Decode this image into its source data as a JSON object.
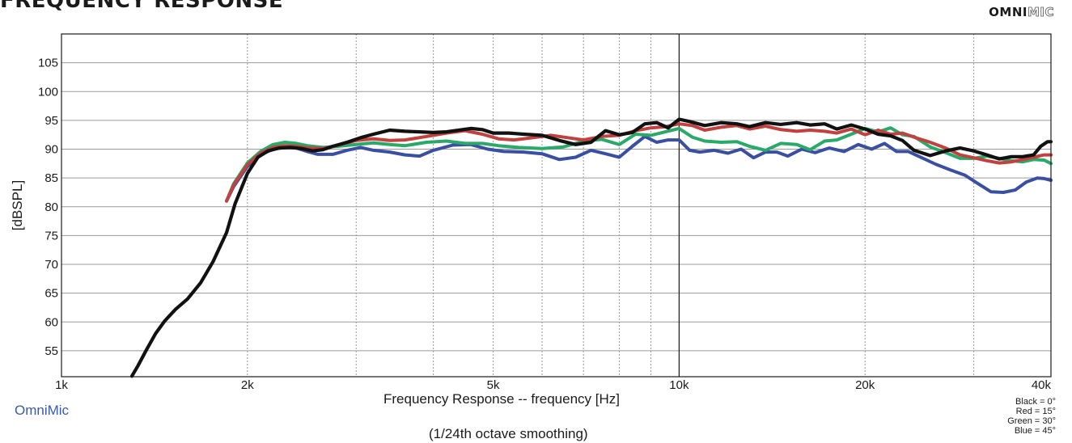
{
  "header": {
    "title": "FREQUENCY RESPONSE",
    "brand_part1": "OMNI",
    "brand_part2": "MIC"
  },
  "footer": {
    "source": "OmniMic",
    "smoothing": "(1/24th octave smoothing)"
  },
  "chart_data": {
    "type": "line",
    "xlabel": "Frequency Response -- frequency [Hz]",
    "ylabel": "[dBSPL]",
    "x_scale": "log",
    "xlim": [
      1000,
      40000
    ],
    "ylim": [
      50.5,
      110
    ],
    "grid": true,
    "x_ticks": [
      {
        "value": 1000,
        "label": "1k"
      },
      {
        "value": 2000,
        "label": "2k"
      },
      {
        "value": 5000,
        "label": "5k"
      },
      {
        "value": 10000,
        "label": "10k"
      },
      {
        "value": 20000,
        "label": "20k"
      },
      {
        "value": 40000,
        "label": "40k"
      }
    ],
    "y_ticks": [
      55,
      60,
      65,
      70,
      75,
      80,
      85,
      90,
      95,
      100,
      105
    ],
    "legend_placement": "bottom-right",
    "legend": [
      "Black = 0°",
      "Red = 15°",
      "Green = 30°",
      "Blue = 45°"
    ],
    "series": [
      {
        "color": "#3a4fa2",
        "points": [
          [
            1850,
            81
          ],
          [
            1900,
            83.5
          ],
          [
            2000,
            87
          ],
          [
            2100,
            89
          ],
          [
            2200,
            90
          ],
          [
            2300,
            90.3
          ],
          [
            2400,
            90.2
          ],
          [
            2500,
            89.6
          ],
          [
            2600,
            89.1
          ],
          [
            2750,
            89.1
          ],
          [
            2900,
            89.8
          ],
          [
            3050,
            90.3
          ],
          [
            3200,
            89.8
          ],
          [
            3400,
            89.5
          ],
          [
            3600,
            89
          ],
          [
            3800,
            88.8
          ],
          [
            4000,
            89.8
          ],
          [
            4300,
            90.7
          ],
          [
            4600,
            90.8
          ],
          [
            4900,
            90
          ],
          [
            5200,
            89.6
          ],
          [
            5600,
            89.5
          ],
          [
            6000,
            89.2
          ],
          [
            6400,
            88.2
          ],
          [
            6800,
            88.6
          ],
          [
            7200,
            89.8
          ],
          [
            7600,
            89.2
          ],
          [
            8000,
            88.6
          ],
          [
            8400,
            90.5
          ],
          [
            8800,
            92.2
          ],
          [
            9200,
            91.2
          ],
          [
            9600,
            91.6
          ],
          [
            10000,
            91.6
          ],
          [
            10400,
            89.8
          ],
          [
            10800,
            89.5
          ],
          [
            11400,
            89.8
          ],
          [
            12000,
            89.3
          ],
          [
            12600,
            90
          ],
          [
            13200,
            88.5
          ],
          [
            13800,
            89.5
          ],
          [
            14400,
            89.5
          ],
          [
            15000,
            88.8
          ],
          [
            15800,
            90
          ],
          [
            16600,
            89.4
          ],
          [
            17500,
            90.2
          ],
          [
            18500,
            89.6
          ],
          [
            19500,
            90.8
          ],
          [
            20500,
            90
          ],
          [
            21500,
            91
          ],
          [
            22500,
            89.6
          ],
          [
            23500,
            89.6
          ],
          [
            24500,
            88.7
          ],
          [
            26000,
            87.4
          ],
          [
            27500,
            86.4
          ],
          [
            29000,
            85.5
          ],
          [
            30500,
            84
          ],
          [
            32000,
            82.6
          ],
          [
            33500,
            82.5
          ],
          [
            35000,
            82.9
          ],
          [
            36500,
            84.3
          ],
          [
            38000,
            85
          ],
          [
            39000,
            84.9
          ],
          [
            40000,
            84.6
          ]
        ]
      },
      {
        "color": "#2aa96a",
        "points": [
          [
            1850,
            81
          ],
          [
            1900,
            84
          ],
          [
            2000,
            87.6
          ],
          [
            2100,
            89.6
          ],
          [
            2200,
            90.8
          ],
          [
            2300,
            91.2
          ],
          [
            2400,
            91
          ],
          [
            2500,
            90.6
          ],
          [
            2650,
            90.3
          ],
          [
            2800,
            90.5
          ],
          [
            3000,
            90.8
          ],
          [
            3200,
            91.1
          ],
          [
            3400,
            90.8
          ],
          [
            3600,
            90.6
          ],
          [
            3900,
            91.2
          ],
          [
            4200,
            91.4
          ],
          [
            4500,
            91
          ],
          [
            4800,
            91
          ],
          [
            5100,
            90.6
          ],
          [
            5500,
            90.3
          ],
          [
            6000,
            90.1
          ],
          [
            6500,
            90.4
          ],
          [
            7000,
            91.4
          ],
          [
            7500,
            91.7
          ],
          [
            8000,
            90.8
          ],
          [
            8500,
            92.6
          ],
          [
            9000,
            92.4
          ],
          [
            9500,
            93
          ],
          [
            10000,
            93.6
          ],
          [
            10500,
            92.1
          ],
          [
            11000,
            91.4
          ],
          [
            11700,
            91.2
          ],
          [
            12400,
            91.3
          ],
          [
            13000,
            90.5
          ],
          [
            13800,
            89.8
          ],
          [
            14600,
            91
          ],
          [
            15500,
            90.8
          ],
          [
            16300,
            89.9
          ],
          [
            17200,
            91.4
          ],
          [
            18000,
            91.6
          ],
          [
            19000,
            92.6
          ],
          [
            20000,
            93.6
          ],
          [
            21000,
            93
          ],
          [
            22000,
            93.7
          ],
          [
            23000,
            92.5
          ],
          [
            24000,
            92.2
          ],
          [
            25500,
            90.4
          ],
          [
            27000,
            89.4
          ],
          [
            28500,
            88.4
          ],
          [
            30000,
            88.4
          ],
          [
            31500,
            88.8
          ],
          [
            33000,
            88.4
          ],
          [
            34500,
            88
          ],
          [
            36000,
            87.8
          ],
          [
            37500,
            88.2
          ],
          [
            39000,
            88.1
          ],
          [
            40000,
            87.5
          ]
        ]
      },
      {
        "color": "#c1413f",
        "points": [
          [
            1850,
            81
          ],
          [
            1900,
            83.8
          ],
          [
            2000,
            87.3
          ],
          [
            2100,
            89.3
          ],
          [
            2200,
            90.3
          ],
          [
            2300,
            90.6
          ],
          [
            2400,
            90.5
          ],
          [
            2500,
            90.2
          ],
          [
            2650,
            90.1
          ],
          [
            2800,
            90.7
          ],
          [
            3000,
            91.5
          ],
          [
            3200,
            91.8
          ],
          [
            3400,
            91.5
          ],
          [
            3600,
            91.6
          ],
          [
            3900,
            92.2
          ],
          [
            4200,
            92.8
          ],
          [
            4500,
            93.2
          ],
          [
            4800,
            92.6
          ],
          [
            5100,
            91.8
          ],
          [
            5400,
            91.6
          ],
          [
            5800,
            92
          ],
          [
            6200,
            92.4
          ],
          [
            6600,
            92
          ],
          [
            7000,
            91.6
          ],
          [
            7500,
            92.2
          ],
          [
            8000,
            92.4
          ],
          [
            8500,
            93.2
          ],
          [
            9000,
            93.7
          ],
          [
            9500,
            93.9
          ],
          [
            10000,
            94.4
          ],
          [
            10500,
            94.1
          ],
          [
            11000,
            93.3
          ],
          [
            11700,
            93.8
          ],
          [
            12400,
            94.1
          ],
          [
            13000,
            93.5
          ],
          [
            13800,
            94
          ],
          [
            14600,
            93.4
          ],
          [
            15500,
            93.1
          ],
          [
            16300,
            93.3
          ],
          [
            17200,
            93.1
          ],
          [
            18000,
            92.8
          ],
          [
            19000,
            93.5
          ],
          [
            20000,
            92.5
          ],
          [
            21000,
            93.3
          ],
          [
            22000,
            92.6
          ],
          [
            23000,
            92.8
          ],
          [
            24000,
            92.1
          ],
          [
            25500,
            91.2
          ],
          [
            27000,
            90.2
          ],
          [
            28500,
            89
          ],
          [
            30000,
            88.5
          ],
          [
            31500,
            88
          ],
          [
            33000,
            87.6
          ],
          [
            34500,
            87.8
          ],
          [
            36000,
            88.2
          ],
          [
            37500,
            88.6
          ],
          [
            39000,
            89
          ],
          [
            40000,
            89
          ]
        ]
      },
      {
        "color": "#111111",
        "points": [
          [
            1300,
            50.6
          ],
          [
            1330,
            52.4
          ],
          [
            1370,
            55
          ],
          [
            1420,
            58
          ],
          [
            1470,
            60.2
          ],
          [
            1530,
            62.2
          ],
          [
            1600,
            64
          ],
          [
            1680,
            66.8
          ],
          [
            1760,
            70.5
          ],
          [
            1850,
            75.5
          ],
          [
            1910,
            80.5
          ],
          [
            2000,
            85.8
          ],
          [
            2080,
            88.6
          ],
          [
            2160,
            89.7
          ],
          [
            2250,
            90.2
          ],
          [
            2350,
            90.3
          ],
          [
            2450,
            90.1
          ],
          [
            2550,
            89.7
          ],
          [
            2650,
            89.9
          ],
          [
            2750,
            90.5
          ],
          [
            2900,
            91.2
          ],
          [
            3050,
            92
          ],
          [
            3200,
            92.6
          ],
          [
            3400,
            93.3
          ],
          [
            3600,
            93.1
          ],
          [
            3800,
            93
          ],
          [
            4000,
            92.9
          ],
          [
            4200,
            93
          ],
          [
            4400,
            93.3
          ],
          [
            4600,
            93.6
          ],
          [
            4800,
            93.4
          ],
          [
            5000,
            92.8
          ],
          [
            5300,
            92.8
          ],
          [
            5600,
            92.6
          ],
          [
            6000,
            92.4
          ],
          [
            6400,
            91.5
          ],
          [
            6800,
            90.8
          ],
          [
            7200,
            91.2
          ],
          [
            7600,
            93.2
          ],
          [
            8000,
            92.5
          ],
          [
            8400,
            92.9
          ],
          [
            8800,
            94.4
          ],
          [
            9200,
            94.6
          ],
          [
            9600,
            93.7
          ],
          [
            10000,
            95.2
          ],
          [
            10400,
            94.8
          ],
          [
            11000,
            94.1
          ],
          [
            11700,
            94.6
          ],
          [
            12400,
            94.4
          ],
          [
            13000,
            93.9
          ],
          [
            13800,
            94.6
          ],
          [
            14600,
            94.3
          ],
          [
            15500,
            94.6
          ],
          [
            16300,
            94.2
          ],
          [
            17200,
            94.4
          ],
          [
            18000,
            93.5
          ],
          [
            19000,
            94.2
          ],
          [
            20000,
            93.5
          ],
          [
            21000,
            92.6
          ],
          [
            22000,
            92.3
          ],
          [
            23000,
            91.5
          ],
          [
            24000,
            89.8
          ],
          [
            25500,
            88.9
          ],
          [
            27000,
            89.7
          ],
          [
            28500,
            90.2
          ],
          [
            30000,
            89.7
          ],
          [
            31500,
            89
          ],
          [
            33000,
            88.3
          ],
          [
            34500,
            88.7
          ],
          [
            36000,
            88.7
          ],
          [
            37500,
            89
          ],
          [
            38500,
            90.5
          ],
          [
            39500,
            91.3
          ],
          [
            40000,
            91.3
          ]
        ]
      }
    ]
  }
}
